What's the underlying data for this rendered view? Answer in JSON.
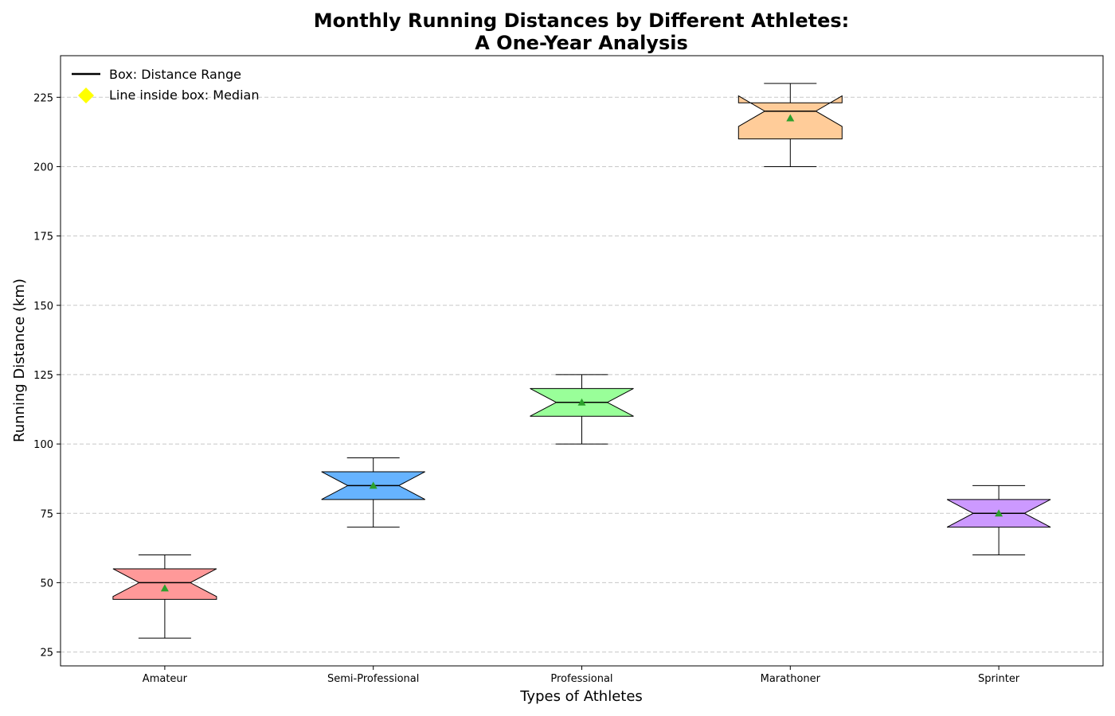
{
  "chart_data": {
    "type": "box",
    "title_line1": "Monthly Running Distances by Different Athletes:",
    "title_line2": "A One-Year Analysis",
    "xlabel": "Types of Athletes",
    "ylabel": "Running Distance (km)",
    "ylim": [
      20,
      240
    ],
    "yticks": [
      25,
      50,
      75,
      100,
      125,
      150,
      175,
      200,
      225
    ],
    "grid": "y-dashed",
    "legend_position": "top-left",
    "legend": [
      {
        "label": "Box: Distance Range",
        "marker": "line",
        "color": "#000000"
      },
      {
        "label": "Line inside box: Median",
        "marker": "diamond",
        "color": "#ffff00"
      }
    ],
    "categories": [
      "Amateur",
      "Semi-Professional",
      "Professional",
      "Marathoner",
      "Sprinter"
    ],
    "boxes": [
      {
        "name": "Amateur",
        "whisker_low": 30,
        "q1": 44,
        "median": 50,
        "q3": 55,
        "whisker_high": 60,
        "mean": 48,
        "notch_low": 45,
        "notch_high": 55,
        "color": "#ff9999"
      },
      {
        "name": "Semi-Professional",
        "whisker_low": 70,
        "q1": 80,
        "median": 85,
        "q3": 90,
        "whisker_high": 95,
        "mean": 85,
        "notch_low": 80,
        "notch_high": 90,
        "color": "#66b3ff"
      },
      {
        "name": "Professional",
        "whisker_low": 100,
        "q1": 110,
        "median": 115,
        "q3": 120,
        "whisker_high": 125,
        "mean": 115,
        "notch_low": 110,
        "notch_high": 120,
        "color": "#99ff99"
      },
      {
        "name": "Marathoner",
        "whisker_low": 200,
        "q1": 210,
        "median": 220,
        "q3": 223,
        "whisker_high": 230,
        "mean": 217.5,
        "notch_low": 214.5,
        "notch_high": 225.5,
        "color": "#ffcc99"
      },
      {
        "name": "Sprinter",
        "whisker_low": 60,
        "q1": 70,
        "median": 75,
        "q3": 80,
        "whisker_high": 85,
        "mean": 75,
        "notch_low": 70,
        "notch_high": 80,
        "color": "#cc99ff"
      }
    ],
    "mean_marker_color": "#2ca02c",
    "median_line_color": "#000000"
  }
}
